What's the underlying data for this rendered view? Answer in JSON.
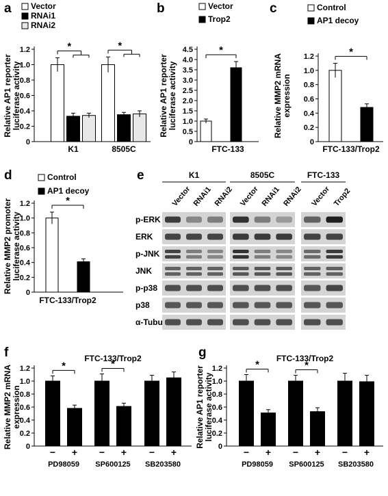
{
  "figure": {
    "panel_labels": [
      "a",
      "b",
      "c",
      "d",
      "e",
      "f",
      "g"
    ]
  },
  "chart_data": [
    {
      "id": "a",
      "type": "bar",
      "ylabel": "Relative AP1 reporter luciferase activity",
      "ylim": [
        0,
        1.2
      ],
      "yticks": [
        "0",
        "0.2",
        "0.4",
        "0.6",
        "0.8",
        "1.0",
        "1.2"
      ],
      "categories": [
        "K1",
        "8505C"
      ],
      "series": [
        {
          "name": "Vector",
          "values": [
            1.0,
            1.0
          ],
          "errors": [
            0.09,
            0.1
          ],
          "fill": "#ffffff"
        },
        {
          "name": "RNAi1",
          "values": [
            0.33,
            0.35
          ],
          "errors": [
            0.04,
            0.03
          ],
          "fill": "#000000"
        },
        {
          "name": "RNAi2",
          "values": [
            0.34,
            0.36
          ],
          "errors": [
            0.03,
            0.04
          ],
          "fill": "#e8e8e8"
        }
      ],
      "significance": [
        "*",
        "*"
      ]
    },
    {
      "id": "b",
      "type": "bar",
      "ylabel": "Relative AP1 reporter luciferase activity",
      "ylim": [
        0,
        4.5
      ],
      "yticks": [
        "0",
        "0.5",
        "1.0",
        "1.5",
        "2.0",
        "2.5",
        "3.0",
        "3.5",
        "4.0",
        "4.5"
      ],
      "categories": [
        "FTC-133"
      ],
      "series": [
        {
          "name": "Vector",
          "values": [
            1.0
          ],
          "errors": [
            0.1
          ],
          "fill": "#ffffff"
        },
        {
          "name": "Trop2",
          "values": [
            3.6
          ],
          "errors": [
            0.3
          ],
          "fill": "#000000"
        }
      ],
      "significance": [
        "*"
      ]
    },
    {
      "id": "c",
      "type": "bar",
      "ylabel": "Relative MMP2 mRNA expression",
      "ylim": [
        0,
        1.2
      ],
      "yticks": [
        "0",
        "0.2",
        "0.4",
        "0.6",
        "0.8",
        "1.0",
        "1.2"
      ],
      "categories": [
        "FTC-133/Trop2"
      ],
      "series": [
        {
          "name": "Control",
          "values": [
            1.0
          ],
          "errors": [
            0.1
          ],
          "fill": "#ffffff"
        },
        {
          "name": "AP1 decoy",
          "values": [
            0.48
          ],
          "errors": [
            0.05
          ],
          "fill": "#000000"
        }
      ],
      "significance": [
        "*"
      ]
    },
    {
      "id": "d",
      "type": "bar",
      "ylabel": "Relative MMP2 promoter luciferase activity",
      "ylim": [
        0,
        1.2
      ],
      "yticks": [
        "0",
        "0.2",
        "0.4",
        "0.6",
        "0.8",
        "1.0",
        "1.2"
      ],
      "categories": [
        "FTC-133/Trop2"
      ],
      "series": [
        {
          "name": "Control",
          "values": [
            1.0
          ],
          "errors": [
            0.08
          ],
          "fill": "#ffffff"
        },
        {
          "name": "AP1 decoy",
          "values": [
            0.41
          ],
          "errors": [
            0.04
          ],
          "fill": "#000000"
        }
      ],
      "significance": [
        "*"
      ]
    },
    {
      "id": "f",
      "type": "bar",
      "title": "FTC-133/Trop2",
      "ylabel": "Relative MMP2 mRNA expression",
      "ylim": [
        0,
        1.2
      ],
      "yticks": [
        "0",
        "0.2",
        "0.4",
        "0.6",
        "0.8",
        "1.0",
        "1.2"
      ],
      "groups": [
        "PD98059",
        "SP600125",
        "SB203580"
      ],
      "conditions": [
        "−",
        "+"
      ],
      "values": [
        [
          1.0,
          0.58
        ],
        [
          1.0,
          0.61
        ],
        [
          1.0,
          1.05
        ]
      ],
      "errors": [
        [
          0.08,
          0.05
        ],
        [
          0.11,
          0.05
        ],
        [
          0.09,
          0.09
        ]
      ],
      "significance": [
        "*",
        "*",
        ""
      ]
    },
    {
      "id": "g",
      "type": "bar",
      "title": "FTC-133/Trop2",
      "ylabel": "Relative AP1 reporter luciferase activity",
      "ylim": [
        0,
        1.2
      ],
      "yticks": [
        "0",
        "0.2",
        "0.4",
        "0.6",
        "0.8",
        "1.0",
        "1.2"
      ],
      "groups": [
        "PD98059",
        "SP600125",
        "SB203580"
      ],
      "conditions": [
        "−",
        "+"
      ],
      "values": [
        [
          1.0,
          0.51
        ],
        [
          1.0,
          0.53
        ],
        [
          1.0,
          0.99
        ]
      ],
      "errors": [
        [
          0.1,
          0.05
        ],
        [
          0.09,
          0.06
        ],
        [
          0.12,
          0.1
        ]
      ],
      "significance": [
        "*",
        "*",
        ""
      ]
    }
  ],
  "blot": {
    "id": "e",
    "groups": [
      {
        "name": "K1",
        "lanes": [
          "Vector",
          "RNAi1",
          "RNAi2"
        ]
      },
      {
        "name": "8505C",
        "lanes": [
          "Vector",
          "RNAi1",
          "RNAi2"
        ]
      },
      {
        "name": "FTC-133",
        "lanes": [
          "Vector",
          "Trop2"
        ]
      }
    ],
    "rows": [
      "p-ERK",
      "ERK",
      "p-JNK",
      "JNK",
      "p-p38",
      "p38",
      "α-Tubulin"
    ],
    "band_intensity": [
      [
        [
          0.85,
          0.45,
          0.5
        ],
        [
          0.9,
          0.5,
          0.35
        ],
        [
          0.65,
          1.0
        ]
      ],
      [
        [
          0.8,
          0.8,
          0.8
        ],
        [
          0.85,
          0.85,
          0.85
        ],
        [
          0.8,
          0.8
        ]
      ],
      [
        [
          0.8,
          0.5,
          0.45
        ],
        [
          0.9,
          0.5,
          0.45
        ],
        [
          0.6,
          0.85
        ]
      ],
      [
        [
          0.65,
          0.65,
          0.65
        ],
        [
          0.7,
          0.7,
          0.7
        ],
        [
          0.65,
          0.65
        ]
      ],
      [
        [
          0.75,
          0.75,
          0.75
        ],
        [
          0.75,
          0.75,
          0.75
        ],
        [
          0.7,
          0.8
        ]
      ],
      [
        [
          0.7,
          0.7,
          0.7
        ],
        [
          0.7,
          0.7,
          0.7
        ],
        [
          0.7,
          0.7
        ]
      ],
      [
        [
          0.75,
          0.75,
          0.75
        ],
        [
          0.75,
          0.75,
          0.75
        ],
        [
          0.75,
          0.75
        ]
      ]
    ]
  }
}
